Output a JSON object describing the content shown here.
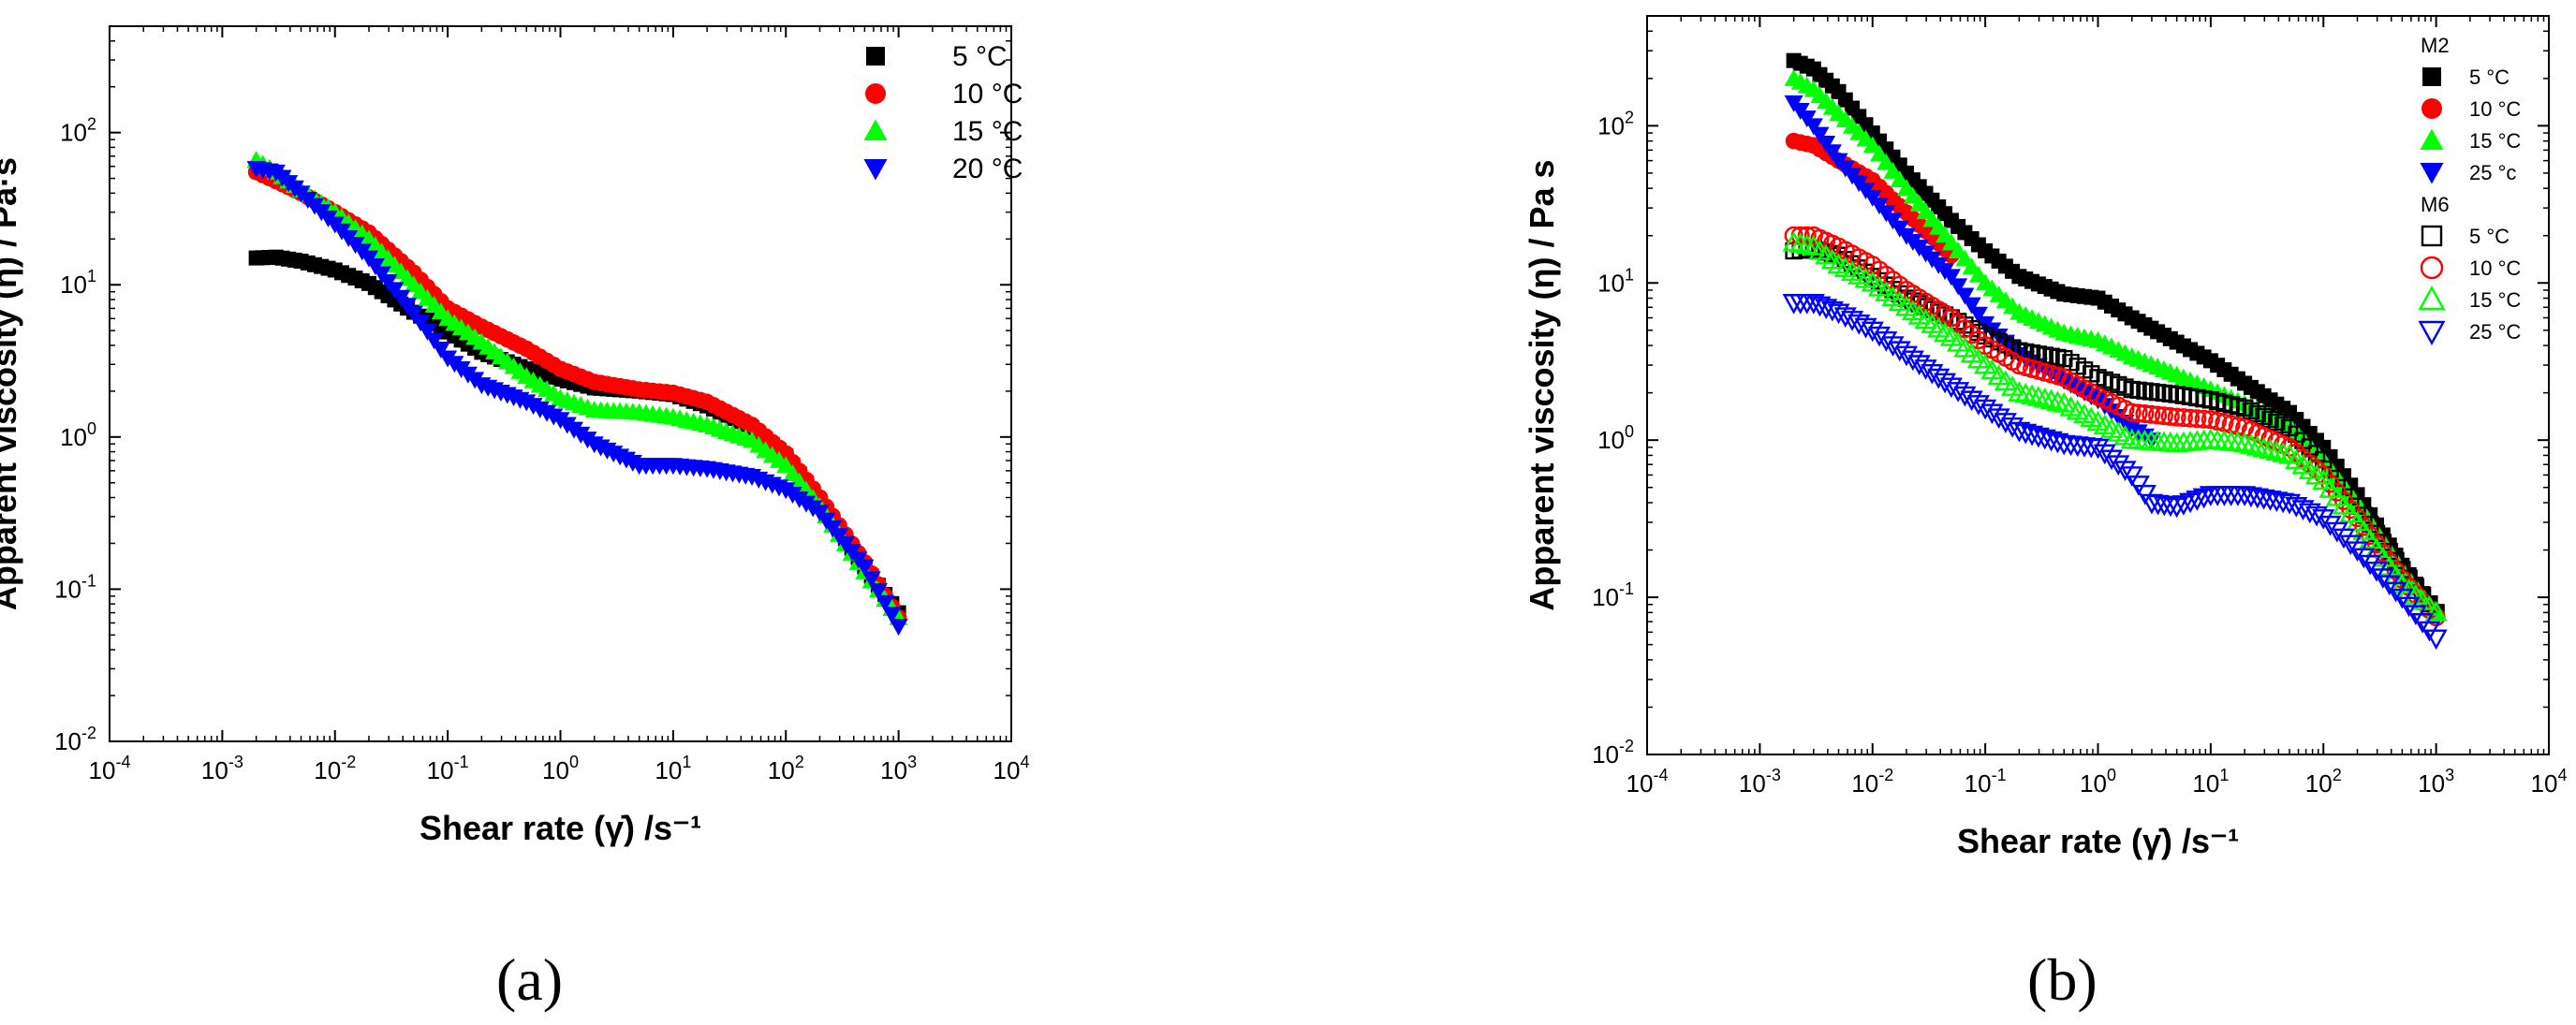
{
  "panels": [
    {
      "id": "a",
      "label": "(a)"
    },
    {
      "id": "b",
      "label": "(b)"
    }
  ],
  "chart_data": [
    {
      "type": "scatter",
      "xscale": "log",
      "yscale": "log",
      "xlabel": "Shear rate (γ̇) /s⁻¹",
      "ylabel": "Apparent viscosity (η) / Pa·s",
      "xlim": [
        0.0001,
        10000
      ],
      "ylim": [
        0.01,
        500
      ],
      "x_ticks": [
        {
          "base": "10",
          "exp": "-4"
        },
        {
          "base": "10",
          "exp": "-3"
        },
        {
          "base": "10",
          "exp": "-2"
        },
        {
          "base": "10",
          "exp": "-1"
        },
        {
          "base": "10",
          "exp": "0"
        },
        {
          "base": "10",
          "exp": "1"
        },
        {
          "base": "10",
          "exp": "2"
        },
        {
          "base": "10",
          "exp": "3"
        },
        {
          "base": "10",
          "exp": "4"
        }
      ],
      "y_ticks": [
        {
          "base": "10",
          "exp": "-2"
        },
        {
          "base": "10",
          "exp": "-1"
        },
        {
          "base": "10",
          "exp": "0"
        },
        {
          "base": "10",
          "exp": "1"
        },
        {
          "base": "10",
          "exp": "2"
        }
      ],
      "legend_position": "top-right",
      "series": [
        {
          "name": "5 °C",
          "color": "#000000",
          "marker": "square",
          "filled": true,
          "points": [
            [
              0.002,
              15
            ],
            [
              0.003,
              15.2
            ],
            [
              0.005,
              14.3
            ],
            [
              0.01,
              12.5
            ],
            [
              0.02,
              10.2
            ],
            [
              0.05,
              6.6
            ],
            [
              0.1,
              4.9
            ],
            [
              0.2,
              3.6
            ],
            [
              0.5,
              2.8
            ],
            [
              1,
              2.4
            ],
            [
              2,
              2.1
            ],
            [
              5,
              2
            ],
            [
              10,
              1.9
            ],
            [
              20,
              1.6
            ],
            [
              50,
              1.15
            ],
            [
              100,
              0.75
            ],
            [
              200,
              0.38
            ],
            [
              500,
              0.14
            ],
            [
              1000,
              0.07
            ]
          ]
        },
        {
          "name": "10 °C",
          "color": "#ff0000",
          "marker": "circle",
          "filled": true,
          "points": [
            [
              0.002,
              55
            ],
            [
              0.003,
              48
            ],
            [
              0.005,
              40
            ],
            [
              0.01,
              30
            ],
            [
              0.02,
              22
            ],
            [
              0.05,
              12
            ],
            [
              0.1,
              7
            ],
            [
              0.2,
              5.3
            ],
            [
              0.5,
              3.8
            ],
            [
              1,
              2.8
            ],
            [
              2,
              2.3
            ],
            [
              5,
              2.05
            ],
            [
              10,
              1.95
            ],
            [
              20,
              1.7
            ],
            [
              50,
              1.2
            ],
            [
              100,
              0.78
            ],
            [
              200,
              0.4
            ],
            [
              500,
              0.15
            ],
            [
              1000,
              0.065
            ]
          ]
        },
        {
          "name": "15 °C",
          "color": "#00ff00",
          "marker": "triangle-up",
          "filled": true,
          "points": [
            [
              0.002,
              66
            ],
            [
              0.003,
              55
            ],
            [
              0.005,
              42
            ],
            [
              0.01,
              30
            ],
            [
              0.02,
              20
            ],
            [
              0.05,
              10
            ],
            [
              0.1,
              6
            ],
            [
              0.2,
              4.2
            ],
            [
              0.5,
              2.5
            ],
            [
              1,
              1.8
            ],
            [
              2,
              1.5
            ],
            [
              5,
              1.45
            ],
            [
              10,
              1.35
            ],
            [
              20,
              1.2
            ],
            [
              50,
              0.95
            ],
            [
              100,
              0.65
            ],
            [
              200,
              0.35
            ],
            [
              500,
              0.13
            ],
            [
              1000,
              0.065
            ]
          ]
        },
        {
          "name": "20 °C",
          "color": "#0000ff",
          "marker": "triangle-down",
          "filled": true,
          "points": [
            [
              0.002,
              58
            ],
            [
              0.003,
              55
            ],
            [
              0.005,
              40
            ],
            [
              0.01,
              25
            ],
            [
              0.02,
              15
            ],
            [
              0.05,
              6.5
            ],
            [
              0.1,
              3.3
            ],
            [
              0.2,
              2.2
            ],
            [
              0.5,
              1.7
            ],
            [
              1,
              1.3
            ],
            [
              2,
              0.9
            ],
            [
              5,
              0.65
            ],
            [
              10,
              0.65
            ],
            [
              20,
              0.62
            ],
            [
              50,
              0.55
            ],
            [
              100,
              0.45
            ],
            [
              200,
              0.32
            ],
            [
              500,
              0.14
            ],
            [
              1000,
              0.057
            ]
          ]
        }
      ]
    },
    {
      "type": "scatter",
      "xscale": "log",
      "yscale": "log",
      "xlabel": "Shear rate (γ̇) /s⁻¹",
      "ylabel": "Apparent viscosity (η) / Pa s",
      "xlim": [
        0.0001,
        10000
      ],
      "ylim": [
        0.01,
        500
      ],
      "x_ticks": [
        {
          "base": "10",
          "exp": "-4"
        },
        {
          "base": "10",
          "exp": "-3"
        },
        {
          "base": "10",
          "exp": "-2"
        },
        {
          "base": "10",
          "exp": "-1"
        },
        {
          "base": "10",
          "exp": "0"
        },
        {
          "base": "10",
          "exp": "1"
        },
        {
          "base": "10",
          "exp": "2"
        },
        {
          "base": "10",
          "exp": "3"
        },
        {
          "base": "10",
          "exp": "4"
        }
      ],
      "y_ticks": [
        {
          "base": "10",
          "exp": "-2"
        },
        {
          "base": "10",
          "exp": "-1"
        },
        {
          "base": "10",
          "exp": "0"
        },
        {
          "base": "10",
          "exp": "1"
        },
        {
          "base": "10",
          "exp": "2"
        }
      ],
      "legend_position": "top-right",
      "legend_groups": [
        {
          "title": "M2",
          "series": [
            0,
            1,
            2,
            3
          ]
        },
        {
          "title": "M6",
          "series": [
            4,
            5,
            6,
            7
          ]
        }
      ],
      "series": [
        {
          "name": "5 °C",
          "color": "#000000",
          "marker": "square",
          "filled": true,
          "points": [
            [
              0.002,
              260
            ],
            [
              0.003,
              230
            ],
            [
              0.005,
              165
            ],
            [
              0.01,
              90
            ],
            [
              0.02,
              50
            ],
            [
              0.05,
              25
            ],
            [
              0.1,
              16
            ],
            [
              0.2,
              11
            ],
            [
              0.5,
              8.5
            ],
            [
              1,
              8
            ],
            [
              2,
              6
            ],
            [
              5,
              4.2
            ],
            [
              10,
              3.2
            ],
            [
              20,
              2.3
            ],
            [
              50,
              1.5
            ],
            [
              100,
              0.9
            ],
            [
              200,
              0.45
            ],
            [
              500,
              0.16
            ],
            [
              1000,
              0.08
            ]
          ]
        },
        {
          "name": "10 °C",
          "color": "#ff0000",
          "marker": "circle",
          "filled": true,
          "points": [
            [
              0.002,
              80
            ],
            [
              0.003,
              75
            ],
            [
              0.005,
              60
            ],
            [
              0.01,
              45
            ],
            [
              0.02,
              28
            ],
            [
              0.05,
              15
            ]
          ]
        },
        {
          "name": "15 °C",
          "color": "#00ff00",
          "marker": "triangle-up",
          "filled": true,
          "points": [
            [
              0.002,
              200
            ],
            [
              0.003,
              170
            ],
            [
              0.005,
              120
            ],
            [
              0.01,
              75
            ],
            [
              0.02,
              40
            ],
            [
              0.05,
              18
            ],
            [
              0.1,
              10
            ],
            [
              0.2,
              6.5
            ],
            [
              0.5,
              4.8
            ],
            [
              1,
              4.3
            ],
            [
              2,
              3.4
            ],
            [
              5,
              2.6
            ],
            [
              10,
              2.1
            ],
            [
              20,
              1.7
            ],
            [
              50,
              1.25
            ],
            [
              100,
              0.75
            ],
            [
              200,
              0.4
            ],
            [
              500,
              0.15
            ],
            [
              1000,
              0.08
            ]
          ]
        },
        {
          "name": "25 °c",
          "color": "#0000ff",
          "marker": "triangle-down",
          "filled": true,
          "points": [
            [
              0.002,
              140
            ],
            [
              0.003,
              100
            ],
            [
              0.005,
              60
            ],
            [
              0.01,
              35
            ],
            [
              0.02,
              20
            ],
            [
              0.05,
              11
            ],
            [
              0.1,
              5.5
            ],
            [
              0.2,
              3.5
            ],
            [
              0.5,
              2.4
            ],
            [
              1,
              1.8
            ],
            [
              2,
              1.2
            ],
            [
              3,
              1
            ]
          ]
        },
        {
          "name": "5 °C",
          "color": "#000000",
          "marker": "square",
          "filled": false,
          "points": [
            [
              0.002,
              16
            ],
            [
              0.003,
              16.5
            ],
            [
              0.005,
              15
            ],
            [
              0.01,
              11
            ],
            [
              0.02,
              8
            ],
            [
              0.05,
              6
            ],
            [
              0.1,
              4.6
            ],
            [
              0.2,
              3.7
            ],
            [
              0.5,
              3.3
            ],
            [
              1,
              2.5
            ],
            [
              2,
              2.1
            ],
            [
              5,
              1.95
            ],
            [
              10,
              1.8
            ],
            [
              20,
              1.6
            ],
            [
              50,
              1.2
            ],
            [
              100,
              0.75
            ],
            [
              200,
              0.38
            ],
            [
              500,
              0.15
            ],
            [
              1000,
              0.08
            ]
          ]
        },
        {
          "name": "10 °C",
          "color": "#ff0000",
          "marker": "circle",
          "filled": false,
          "points": [
            [
              0.002,
              20
            ],
            [
              0.003,
              20
            ],
            [
              0.005,
              17
            ],
            [
              0.01,
              13
            ],
            [
              0.02,
              9
            ],
            [
              0.05,
              6
            ],
            [
              0.1,
              4
            ],
            [
              0.2,
              3
            ],
            [
              0.5,
              2.5
            ],
            [
              1,
              1.9
            ],
            [
              2,
              1.5
            ],
            [
              5,
              1.4
            ],
            [
              10,
              1.35
            ],
            [
              20,
              1.2
            ],
            [
              50,
              0.9
            ],
            [
              100,
              0.6
            ],
            [
              200,
              0.32
            ],
            [
              500,
              0.13
            ],
            [
              1000,
              0.075
            ]
          ]
        },
        {
          "name": "15 °C",
          "color": "#00ff00",
          "marker": "triangle-up",
          "filled": false,
          "points": [
            [
              0.002,
              18
            ],
            [
              0.003,
              17
            ],
            [
              0.005,
              13
            ],
            [
              0.01,
              10
            ],
            [
              0.02,
              7
            ],
            [
              0.05,
              4.5
            ],
            [
              0.1,
              3
            ],
            [
              0.2,
              2
            ],
            [
              0.5,
              1.7
            ],
            [
              1,
              1.3
            ],
            [
              2,
              1
            ],
            [
              5,
              0.95
            ],
            [
              10,
              1
            ],
            [
              20,
              0.95
            ],
            [
              50,
              0.8
            ],
            [
              100,
              0.55
            ],
            [
              200,
              0.3
            ],
            [
              500,
              0.12
            ],
            [
              1000,
              0.08
            ]
          ]
        },
        {
          "name": "25 °C",
          "color": "#0000ff",
          "marker": "triangle-down",
          "filled": false,
          "points": [
            [
              0.002,
              7.5
            ],
            [
              0.003,
              7.5
            ],
            [
              0.005,
              6.5
            ],
            [
              0.01,
              5
            ],
            [
              0.02,
              3.5
            ],
            [
              0.05,
              2.2
            ],
            [
              0.1,
              1.6
            ],
            [
              0.2,
              1.15
            ],
            [
              0.5,
              0.95
            ],
            [
              1,
              0.9
            ],
            [
              2,
              0.6
            ],
            [
              3,
              0.4
            ],
            [
              5,
              0.38
            ],
            [
              10,
              0.45
            ],
            [
              20,
              0.45
            ],
            [
              50,
              0.4
            ],
            [
              100,
              0.32
            ],
            [
              200,
              0.2
            ],
            [
              500,
              0.1
            ],
            [
              1000,
              0.055
            ]
          ]
        }
      ]
    }
  ]
}
